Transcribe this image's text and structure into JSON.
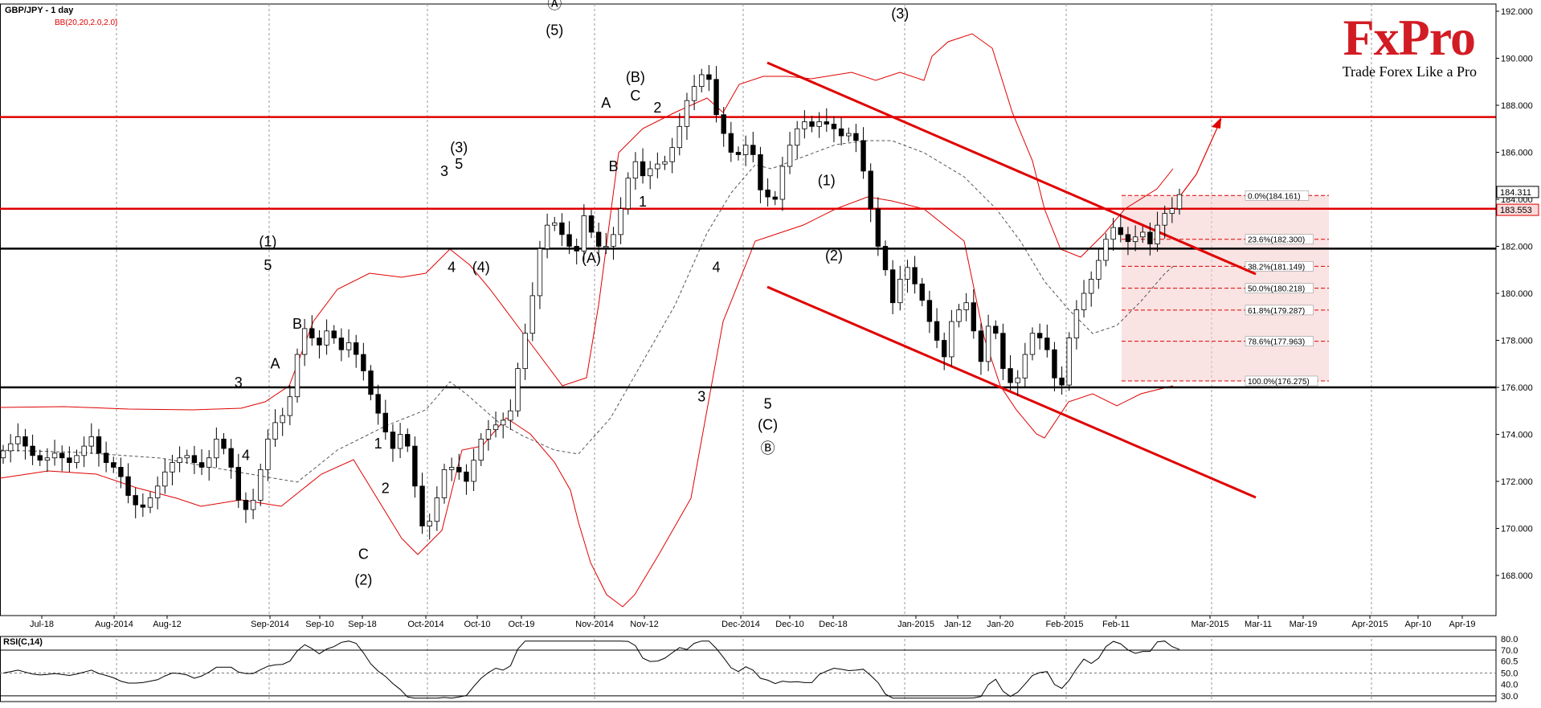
{
  "header": {
    "symbol": "GBP/JPY - 1 day",
    "indicator": "BB(20,20,2.0,2.0)"
  },
  "logo": {
    "name": "FxPro",
    "tagline": "Trade Forex Like a Pro"
  },
  "chart_data": {
    "type": "candlestick",
    "title": "GBP/JPY - 1 day",
    "ylim": [
      166.5,
      193
    ],
    "y_ticks": [
      "192.000",
      "190.000",
      "188.000",
      "186.000",
      "184.000",
      "182.000",
      "180.000",
      "178.000",
      "176.000",
      "174.000",
      "172.000",
      "170.000",
      "168.000"
    ],
    "x_labels": [
      "Jul-18",
      "Aug-2014",
      "Aug-12",
      "Sep-2014",
      "Sep-10",
      "Sep-18",
      "Oct-2014",
      "Oct-10",
      "Oct-19",
      "Nov-2014",
      "Nov-12",
      "Dec-2014",
      "Dec-10",
      "Dec-18",
      "Jan-2015",
      "Jan-12",
      "Jan-20",
      "Feb-2015",
      "Feb-11",
      "Mar-2015",
      "Mar-11",
      "Mar-19",
      "Apr-2015",
      "Apr-10",
      "Apr-19"
    ],
    "price_tags": {
      "current": "184.311",
      "line": "183.553"
    },
    "horizontal_levels": [
      {
        "value": 187.5,
        "color": "#e00000"
      },
      {
        "value": 183.6,
        "color": "#e00000"
      },
      {
        "value": 181.9,
        "color": "#000000"
      },
      {
        "value": 176.0,
        "color": "#000000"
      }
    ],
    "fibonacci": {
      "levels": [
        {
          "label": "0.0%(184.161)",
          "value": 184.161
        },
        {
          "label": "23.6%(182.300)",
          "value": 182.3
        },
        {
          "label": "38.2%(181.149)",
          "value": 181.149
        },
        {
          "label": "50.0%(180.218)",
          "value": 180.218
        },
        {
          "label": "61.8%(179.287)",
          "value": 179.287
        },
        {
          "label": "78.6%(177.963)",
          "value": 177.963
        },
        {
          "label": "100.0%(176.275)",
          "value": 176.275
        }
      ]
    },
    "wave_labels": [
      {
        "text": "Ⓐ",
        "t": 75,
        "v": 192.1
      },
      {
        "text": "(5)",
        "t": 75,
        "v": 191.0
      },
      {
        "text": "(B)",
        "t": 86,
        "v": 189.0
      },
      {
        "text": "A",
        "t": 82,
        "v": 187.9
      },
      {
        "text": "C",
        "t": 86,
        "v": 188.2
      },
      {
        "text": "2",
        "t": 89,
        "v": 187.7
      },
      {
        "text": "B",
        "t": 83,
        "v": 185.2
      },
      {
        "text": "1",
        "t": 87,
        "v": 183.7
      },
      {
        "text": "(3)",
        "t": 62,
        "v": 186.0
      },
      {
        "text": "3",
        "t": 60,
        "v": 185.0
      },
      {
        "text": "5",
        "t": 62,
        "v": 185.3
      },
      {
        "text": "4",
        "t": 61,
        "v": 180.9
      },
      {
        "text": "(4)",
        "t": 65,
        "v": 180.9
      },
      {
        "text": "(A)",
        "t": 80,
        "v": 181.3
      },
      {
        "text": "(1)",
        "t": 36,
        "v": 182.0
      },
      {
        "text": "5",
        "t": 36,
        "v": 181.0
      },
      {
        "text": "B",
        "t": 40,
        "v": 178.5
      },
      {
        "text": "A",
        "t": 37,
        "v": 176.8
      },
      {
        "text": "3",
        "t": 32,
        "v": 176.0
      },
      {
        "text": "4",
        "t": 33,
        "v": 172.9
      },
      {
        "text": "1",
        "t": 51,
        "v": 173.4
      },
      {
        "text": "2",
        "t": 52,
        "v": 171.5
      },
      {
        "text": "C",
        "t": 49,
        "v": 168.7
      },
      {
        "text": "(2)",
        "t": 49,
        "v": 167.6
      },
      {
        "text": "4",
        "t": 97,
        "v": 180.9
      },
      {
        "text": "3",
        "t": 95,
        "v": 175.4
      },
      {
        "text": "5",
        "t": 104,
        "v": 175.1
      },
      {
        "text": "(C)",
        "t": 104,
        "v": 174.2
      },
      {
        "text": "Ⓑ",
        "t": 104,
        "v": 173.2
      },
      {
        "text": "(1)",
        "t": 112,
        "v": 184.6
      },
      {
        "text": "(2)",
        "t": 113,
        "v": 181.4
      },
      {
        "text": "(3)",
        "t": 122,
        "v": 191.7
      }
    ],
    "rsi": {
      "label": "RSI(C,14)",
      "levels": [
        "80.0",
        "70.0",
        "60.5",
        "50.0",
        "40.0",
        "30.0"
      ]
    }
  }
}
